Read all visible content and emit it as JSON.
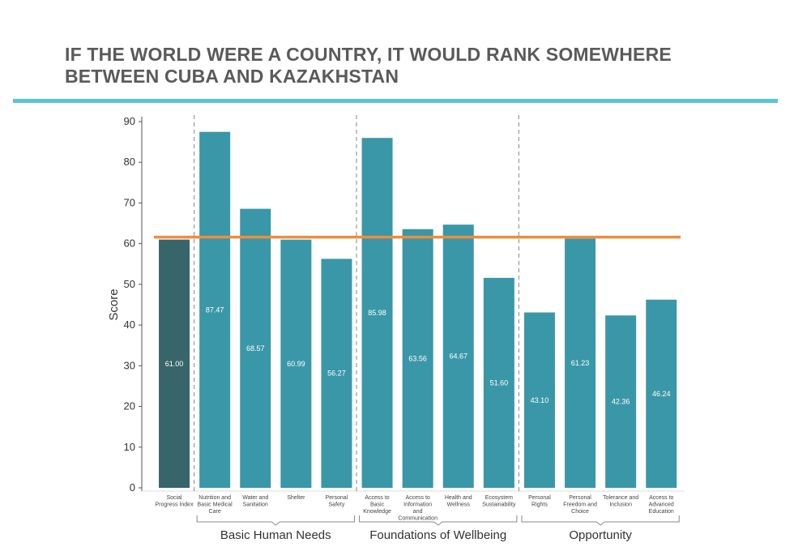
{
  "title_lines": [
    "IF THE WORLD WERE A COUNTRY, IT WOULD RANK SOMEWHERE",
    "BETWEEN CUBA AND KAZAKHSTAN"
  ],
  "colors": {
    "accent_rule": "#5bc4d6",
    "bar": "#3a97a8",
    "bar_highlight": "#386569",
    "reference_line": "#f08c3c"
  },
  "chart_data": {
    "type": "bar",
    "title": "IF THE WORLD WERE A COUNTRY, IT WOULD RANK SOMEWHERE BETWEEN CUBA AND KAZAKHSTAN",
    "ylabel": "Score",
    "xlabel": "",
    "ylim": [
      0,
      90
    ],
    "yticks": [
      0,
      10,
      20,
      30,
      40,
      50,
      60,
      70,
      80,
      90
    ],
    "reference_line": 61.0,
    "categories": [
      [
        "Social",
        "Progress Index"
      ],
      [
        "Nutrition and",
        "Basic Medical",
        "Care"
      ],
      [
        "Water and",
        "Sanitation"
      ],
      [
        "Shelter"
      ],
      [
        "Personal",
        "Safety"
      ],
      [
        "Access to",
        "Basic",
        "Knowledge"
      ],
      [
        "Access to",
        "Information",
        "and",
        "Communication"
      ],
      [
        "Health and",
        "Wellness"
      ],
      [
        "Ecosystem",
        "Sustainability"
      ],
      [
        "Personal",
        "Rights"
      ],
      [
        "Personal",
        "Freedom and",
        "Choice"
      ],
      [
        "Tolerance and",
        "Inclusion"
      ],
      [
        "Access to",
        "Advanced",
        "Education"
      ]
    ],
    "values": [
      61.0,
      87.47,
      68.57,
      60.99,
      56.27,
      85.98,
      63.56,
      64.67,
      51.6,
      43.1,
      61.23,
      42.36,
      46.24
    ],
    "value_labels": [
      "61.00",
      "87.47",
      "68.57",
      "60.99",
      "56.27",
      "85.98",
      "63.56",
      "64.67",
      "51.60",
      "43.10",
      "61.23",
      "42.36",
      "46.24"
    ],
    "highlight_index": 0,
    "groups": [
      {
        "name": "Basic Human Needs",
        "start": 1,
        "end": 4
      },
      {
        "name": "Foundations of Wellbeing",
        "start": 5,
        "end": 8
      },
      {
        "name": "Opportunity",
        "start": 9,
        "end": 12
      }
    ]
  }
}
